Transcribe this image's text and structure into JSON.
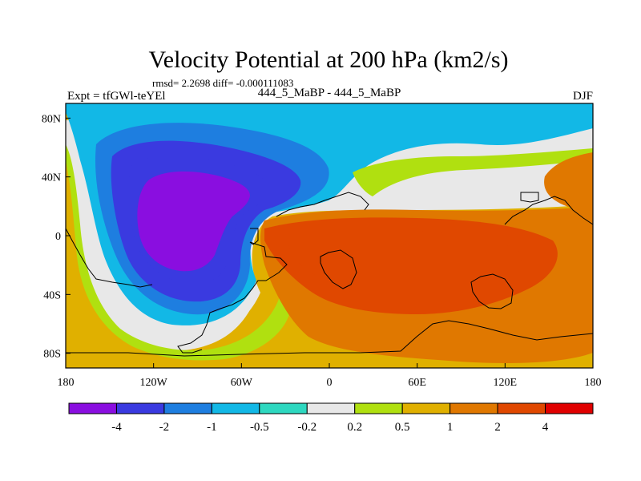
{
  "chart_data": {
    "type": "heatmap",
    "title": "Velocity Potential at 200 hPa (km2/s)",
    "stats": "rmsd= 2.2698 diff= -0.000111083",
    "left_string": "Expt = tfGWl-teYEl",
    "center_string": "444_5_MaBP - 444_5_MaBP",
    "right_string": "DJF",
    "xlabel": "",
    "ylabel": "",
    "xlim": [
      -180,
      180
    ],
    "ylim": [
      -90,
      90
    ],
    "x_ticks": [
      {
        "value": -180,
        "label": "180"
      },
      {
        "value": -120,
        "label": "120W"
      },
      {
        "value": -60,
        "label": "60W"
      },
      {
        "value": 0,
        "label": "0"
      },
      {
        "value": 60,
        "label": "60E"
      },
      {
        "value": 120,
        "label": "120E"
      },
      {
        "value": 180,
        "label": "180"
      }
    ],
    "y_ticks": [
      {
        "value": 80,
        "label": "80N"
      },
      {
        "value": 40,
        "label": "40N"
      },
      {
        "value": 0,
        "label": "0"
      },
      {
        "value": -40,
        "label": "40S"
      },
      {
        "value": -80,
        "label": "80S"
      }
    ],
    "colorbar": {
      "levels": [
        "-4",
        "-2",
        "-1",
        "-0.5",
        "-0.2",
        "0.2",
        "0.5",
        "1",
        "2",
        "4"
      ],
      "colors": [
        "#8a0ee0",
        "#3a3ae0",
        "#1e7ee0",
        "#12b8e6",
        "#2ed8c0",
        "#e8e8e8",
        "#b0e010",
        "#e0b000",
        "#e07800",
        "#e04800",
        "#e00000"
      ]
    },
    "field": {
      "description_centers": [
        {
          "lon": -100,
          "lat": 15,
          "value": -4.5
        },
        {
          "lon": 55,
          "lat": -10,
          "value": 2.8
        }
      ],
      "regions": [
        {
          "name": "west_pacific_hi",
          "value": 1.5,
          "band": "1"
        },
        {
          "name": "east_pacific_ring1",
          "value": 0.3,
          "band": "0.2"
        },
        {
          "name": "east_pacific_ring0",
          "value": 0.0,
          "band": "-0.2"
        },
        {
          "name": "north_band",
          "value": -0.3,
          "band": "-0.5"
        },
        {
          "name": "cell_minus05",
          "value": -0.7,
          "band": "-0.5"
        },
        {
          "name": "cell_minus1",
          "value": -1.5,
          "band": "-1"
        },
        {
          "name": "cell_minus2",
          "value": -3.0,
          "band": "-2"
        },
        {
          "name": "cell_minus4",
          "value": -4.5,
          "band": "-4"
        },
        {
          "name": "north_light",
          "value": 0.0,
          "band": "-0.2"
        },
        {
          "name": "south_east_pacific",
          "value": 0.7,
          "band": "0.5"
        },
        {
          "name": "south_band",
          "value": 1.4,
          "band": "1"
        },
        {
          "name": "east_cell_outer",
          "value": 1.4,
          "band": "1"
        },
        {
          "name": "east_cell_mid",
          "value": 2.5,
          "band": "2"
        },
        {
          "name": "east_cell_core",
          "value": 3.0,
          "band": "2"
        },
        {
          "name": "asia_band",
          "value": 0.35,
          "band": "0.2"
        },
        {
          "name": "far_east",
          "value": 1.5,
          "band": "1"
        }
      ]
    }
  }
}
